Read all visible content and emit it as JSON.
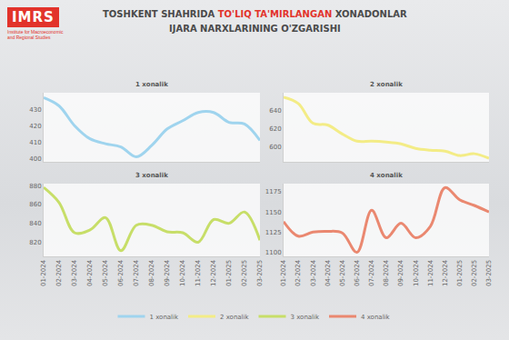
{
  "header": {
    "logo": "IMRS",
    "logo_subtitle": "Institute for Macroeconomic and Regional Studies",
    "title": [
      {
        "text": "TOSHKENT SHAHRIDA "
      },
      {
        "text": "TO'LIQ TA'MIRLANGAN",
        "color": "#e2332b"
      },
      {
        "text": " XONADONLAR"
      }
    ],
    "subtitle": "IJARA NARXLARINING O'ZGARISHI"
  },
  "chart_data": [
    {
      "type": "line",
      "title": "1 xonalik",
      "x": [
        "01-2024",
        "02-2024",
        "03-2024",
        "04-2024",
        "05-2024",
        "06-2024",
        "07-2024",
        "08-2024",
        "09-2024",
        "10-2024",
        "11-2024",
        "12-2024",
        "01-2025",
        "02-2025",
        "03-2025"
      ],
      "series": [
        {
          "name": "1 xonalik",
          "color": "#9fd4ee",
          "line_style": "smooth",
          "values": [
            437,
            432,
            420,
            412,
            409,
            407,
            401,
            408,
            418,
            423,
            428,
            428,
            422,
            421,
            411
          ]
        }
      ],
      "ylim": [
        398,
        440
      ],
      "yticks": [
        400,
        410,
        420,
        430
      ],
      "grid": false,
      "legend": "bottom"
    },
    {
      "type": "line",
      "title": "2 xonalik",
      "x": [
        "01-2024",
        "02-2024",
        "03-2024",
        "04-2024",
        "05-2024",
        "06-2024",
        "07-2024",
        "08-2024",
        "09-2024",
        "10-2024",
        "11-2024",
        "12-2024",
        "01-2025",
        "02-2025",
        "03-2025"
      ],
      "series": [
        {
          "name": "2 xonalik",
          "color": "#f3ec86",
          "line_style": "smooth",
          "values": [
            655,
            648,
            626,
            624,
            614,
            606,
            606,
            605,
            603,
            598,
            596,
            595,
            590,
            592,
            587
          ]
        }
      ],
      "ylim": [
        583,
        660
      ],
      "yticks": [
        600,
        620,
        640
      ],
      "grid": false,
      "legend": "bottom"
    },
    {
      "type": "line",
      "title": "3 xonalik",
      "x": [
        "01-2024",
        "02-2024",
        "03-2024",
        "04-2024",
        "05-2024",
        "06-2024",
        "07-2024",
        "08-2024",
        "09-2024",
        "10-2024",
        "11-2024",
        "12-2024",
        "01-2025",
        "02-2025",
        "03-2025"
      ],
      "series": [
        {
          "name": "3 xonalik",
          "color": "#c7de68",
          "line_style": "smooth",
          "values": [
            878,
            862,
            830,
            833,
            846,
            811,
            838,
            838,
            831,
            830,
            820,
            844,
            840,
            852,
            822
          ]
        }
      ],
      "ylim": [
        805,
        882
      ],
      "yticks": [
        820,
        840,
        860,
        880
      ],
      "grid": false,
      "legend": "bottom"
    },
    {
      "type": "line",
      "title": "4 xonalik",
      "x": [
        "01-2024",
        "02-2024",
        "03-2024",
        "04-2024",
        "05-2024",
        "06-2024",
        "07-2024",
        "08-2024",
        "09-2024",
        "10-2024",
        "11-2024",
        "12-2024",
        "01-2025",
        "02-2025",
        "03-2025"
      ],
      "series": [
        {
          "name": "4 xonalik",
          "color": "#ea8870",
          "line_style": "smooth",
          "values": [
            1138,
            1120,
            1125,
            1126,
            1124,
            1100,
            1152,
            1118,
            1136,
            1118,
            1132,
            1180,
            1165,
            1158,
            1150
          ]
        }
      ],
      "ylim": [
        1095,
        1185
      ],
      "yticks": [
        1100,
        1125,
        1150,
        1175
      ],
      "grid": false,
      "legend": "bottom"
    }
  ]
}
